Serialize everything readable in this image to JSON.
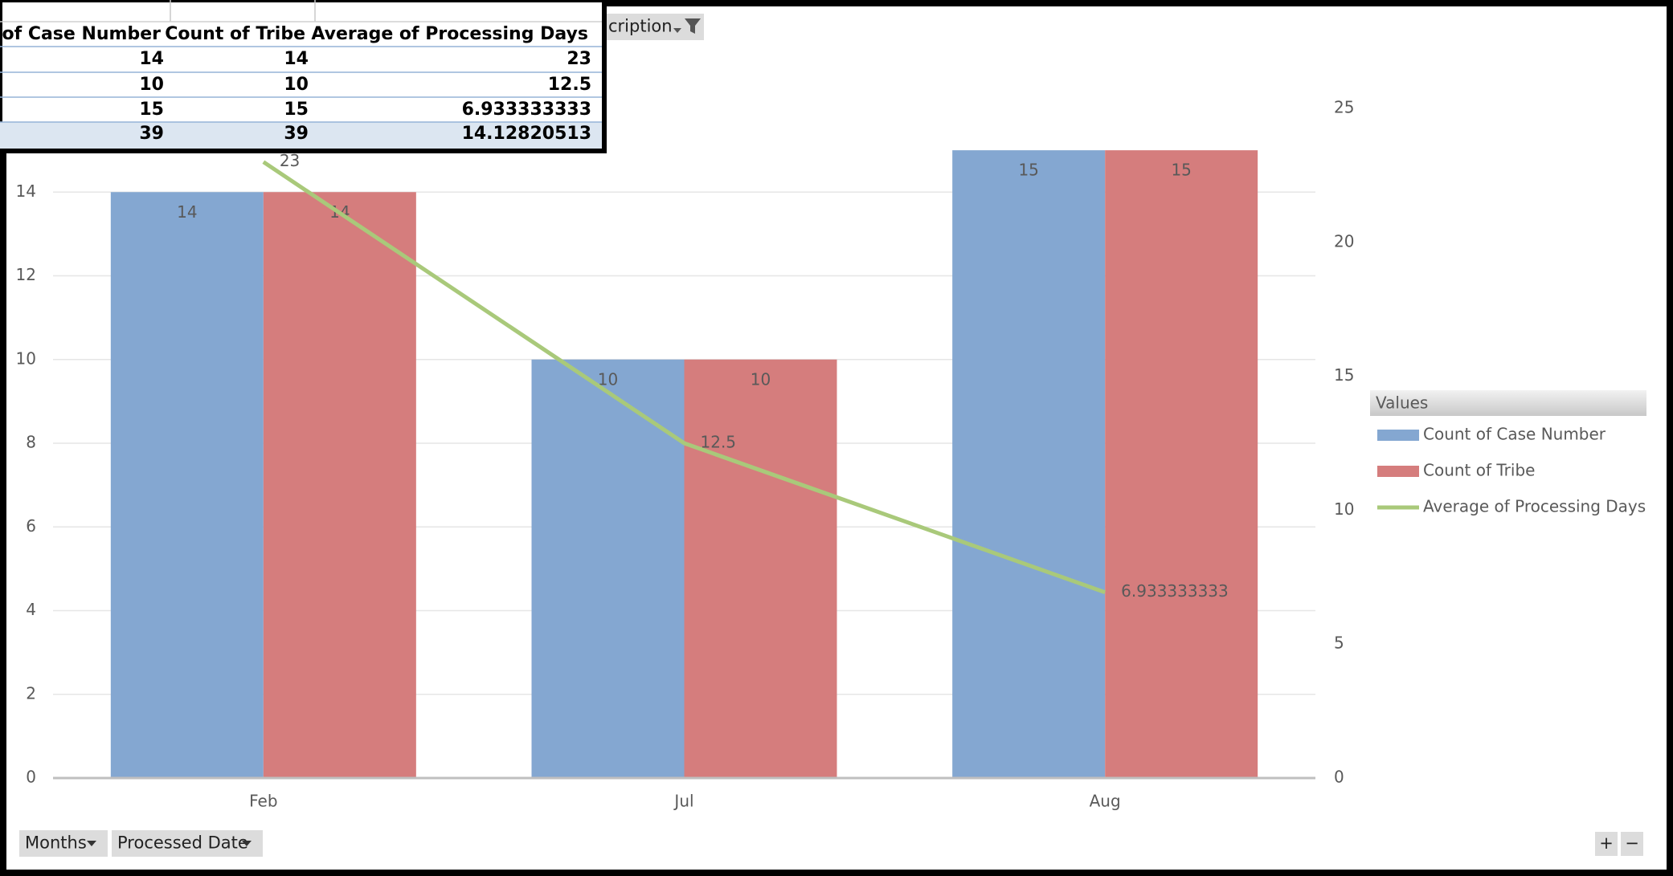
{
  "chart_data": {
    "type": "bar",
    "categories": [
      "Feb",
      "Jul",
      "Aug"
    ],
    "series": [
      {
        "name": "Count of Case Number",
        "color": "#84a7d1",
        "values": [
          14,
          10,
          15
        ]
      },
      {
        "name": "Count of Tribe",
        "color": "#d57d7d",
        "values": [
          14,
          10,
          15
        ]
      },
      {
        "name": "Average of Processing Days",
        "color": "#a9c97a",
        "type": "line",
        "axis": "y2",
        "values": [
          23,
          12.5,
          6.933333333
        ]
      }
    ],
    "ylim": [
      0,
      16
    ],
    "yticks": [
      0,
      2,
      4,
      6,
      8,
      10,
      12,
      14
    ],
    "y2lim": [
      0,
      25
    ],
    "y2ticks": [
      0,
      5,
      10,
      15,
      20,
      25
    ],
    "grid": true,
    "legend_title": "Values",
    "legend": "right"
  },
  "table": {
    "header": [
      "t of Case Number",
      "Count of Tribe",
      "Average of Processing Days"
    ],
    "rows": [
      [
        14,
        14,
        23
      ],
      [
        10,
        10,
        12.5
      ],
      [
        15,
        15,
        6.933333333
      ],
      [
        39,
        39,
        14.12820513
      ]
    ]
  },
  "buttons": {
    "filter": "cription",
    "axis_fields": [
      "Months",
      "Processed Date"
    ],
    "zoom": [
      "+",
      "−"
    ]
  }
}
